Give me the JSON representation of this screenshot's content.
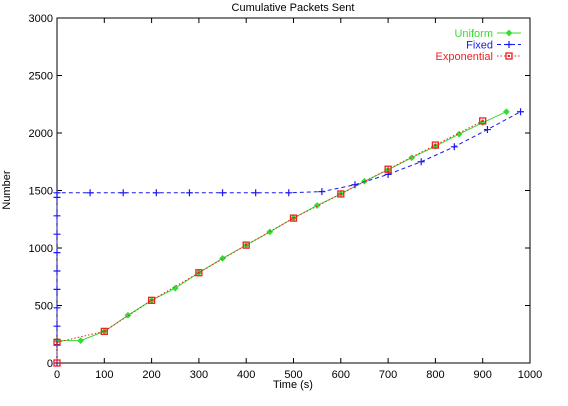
{
  "chart_data": {
    "type": "line",
    "title": "Cumulative Packets Sent",
    "xlabel": "Time (s)",
    "ylabel": "Number",
    "xlim": [
      0,
      1000
    ],
    "ylim": [
      0,
      3000
    ],
    "xticks": [
      0,
      100,
      200,
      300,
      400,
      500,
      600,
      700,
      800,
      900,
      1000
    ],
    "yticks": [
      0,
      500,
      1000,
      1500,
      2000,
      2500,
      3000
    ],
    "grid": false,
    "legend_position": "top-right",
    "series": [
      {
        "name": "Uniform",
        "color": "#33dd33",
        "marker": "diamond",
        "line": "solid",
        "x": [
          0,
          50,
          100,
          150,
          200,
          250,
          300,
          350,
          400,
          450,
          500,
          550,
          600,
          650,
          700,
          750,
          800,
          850,
          900,
          950
        ],
        "y": [
          195,
          195,
          275,
          415,
          545,
          650,
          785,
          910,
          1025,
          1140,
          1260,
          1370,
          1470,
          1580,
          1680,
          1785,
          1885,
          1990,
          2090,
          2185
        ]
      },
      {
        "name": "Fixed",
        "color": "#1a1aee",
        "marker": "plus",
        "line": "dashed",
        "x": [
          0,
          0,
          0,
          0,
          0,
          0,
          0,
          0,
          0,
          0,
          0,
          70,
          140,
          210,
          280,
          350,
          420,
          490,
          560,
          630,
          700,
          770,
          840,
          910,
          980
        ],
        "y": [
          0,
          160,
          320,
          480,
          640,
          800,
          960,
          1120,
          1280,
          1440,
          1480,
          1480,
          1480,
          1480,
          1480,
          1480,
          1480,
          1480,
          1490,
          1550,
          1640,
          1750,
          1880,
          2030,
          2185
        ]
      },
      {
        "name": "Exponential",
        "color": "#ee2222",
        "marker": "square",
        "line": "dotted",
        "x": [
          0,
          0,
          100,
          200,
          300,
          400,
          500,
          600,
          700,
          800,
          900
        ],
        "y": [
          0,
          180,
          275,
          545,
          785,
          1025,
          1260,
          1470,
          1685,
          1895,
          2105
        ]
      }
    ]
  }
}
